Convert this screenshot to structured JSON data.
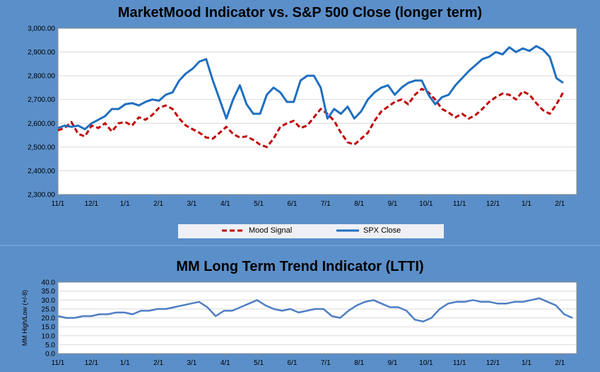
{
  "chart_data": [
    {
      "type": "line",
      "title": "MarketMood Indicator vs. S&P 500 Close (longer term)",
      "xlabel": "",
      "ylabel": "",
      "ylim": [
        2300,
        3000
      ],
      "y_ticks": [
        "3,000.00",
        "2,900.00",
        "2,800.00",
        "2,700.00",
        "2,600.00",
        "2,500.00",
        "2,400.00",
        "2,300.00"
      ],
      "x_ticks": [
        "11/1",
        "12/1",
        "1/1",
        "2/1",
        "3/1",
        "4/1",
        "5/1",
        "6/1",
        "7/1",
        "8/1",
        "9/1",
        "10/1",
        "11/1",
        "12/1",
        "1/1",
        "2/1"
      ],
      "legend_position": "bottom",
      "grid": true,
      "colors": {
        "mood": "#c00000",
        "spx": "#1f6fbf"
      },
      "series": [
        {
          "name": "Mood Signal",
          "style": "dashed",
          "color": "#c00000",
          "x": [
            0,
            2,
            4,
            6,
            8,
            10,
            12,
            14,
            16,
            18,
            20,
            22,
            24,
            26,
            28,
            30,
            32,
            34,
            36,
            38,
            40,
            42,
            44,
            46,
            48,
            50,
            52,
            54,
            56,
            58,
            60,
            62,
            64,
            66,
            68,
            70,
            72,
            74,
            76,
            78,
            80,
            82,
            84,
            86,
            88,
            90,
            92,
            94,
            96,
            98,
            100,
            102,
            104,
            106,
            108,
            110,
            112,
            114,
            116,
            118,
            120,
            122,
            124,
            126,
            128,
            130,
            132,
            134,
            136,
            138,
            140,
            142,
            144,
            146,
            148,
            150
          ],
          "values": [
            2570,
            2580,
            2605,
            2555,
            2545,
            2590,
            2580,
            2600,
            2565,
            2600,
            2605,
            2590,
            2625,
            2615,
            2635,
            2665,
            2675,
            2660,
            2620,
            2590,
            2575,
            2560,
            2540,
            2535,
            2560,
            2585,
            2555,
            2540,
            2545,
            2530,
            2510,
            2500,
            2535,
            2585,
            2600,
            2610,
            2580,
            2590,
            2625,
            2660,
            2640,
            2610,
            2560,
            2520,
            2510,
            2535,
            2560,
            2610,
            2650,
            2670,
            2690,
            2700,
            2680,
            2720,
            2745,
            2730,
            2700,
            2660,
            2645,
            2625,
            2640,
            2620,
            2635,
            2660,
            2690,
            2710,
            2725,
            2720,
            2700,
            2735,
            2720,
            2685,
            2655,
            2640,
            2680,
            2730
          ]
        },
        {
          "name": "SPX Close",
          "style": "solid",
          "color": "#1f6fbf",
          "x": [
            0,
            2,
            4,
            6,
            8,
            10,
            12,
            14,
            16,
            18,
            20,
            22,
            24,
            26,
            28,
            30,
            32,
            34,
            36,
            38,
            40,
            42,
            44,
            46,
            48,
            50,
            52,
            54,
            56,
            58,
            60,
            62,
            64,
            66,
            68,
            70,
            72,
            74,
            76,
            78,
            80,
            82,
            84,
            86,
            88,
            90,
            92,
            94,
            96,
            98,
            100,
            102,
            104,
            106,
            108,
            110,
            112,
            114,
            116,
            118,
            120,
            122,
            124,
            126,
            128,
            130,
            132,
            134,
            136,
            138,
            140,
            142,
            144,
            146,
            148,
            150
          ],
          "values": [
            2580,
            2590,
            2585,
            2590,
            2575,
            2600,
            2615,
            2630,
            2660,
            2660,
            2680,
            2685,
            2675,
            2690,
            2700,
            2695,
            2720,
            2730,
            2780,
            2810,
            2830,
            2860,
            2870,
            2780,
            2700,
            2620,
            2700,
            2760,
            2680,
            2640,
            2640,
            2720,
            2750,
            2730,
            2690,
            2690,
            2780,
            2800,
            2800,
            2750,
            2620,
            2660,
            2640,
            2670,
            2620,
            2650,
            2700,
            2730,
            2750,
            2760,
            2720,
            2750,
            2770,
            2780,
            2780,
            2720,
            2680,
            2710,
            2720,
            2760,
            2790,
            2820,
            2845,
            2870,
            2880,
            2900,
            2890,
            2920,
            2900,
            2915,
            2905,
            2925,
            2910,
            2880,
            2790,
            2770
          ]
        }
      ]
    },
    {
      "type": "line",
      "title": "MM Long Term Trend Indicator (LTTI)",
      "xlabel": "",
      "ylabel": "MM High/Low (+/-8)",
      "ylim": [
        0,
        40
      ],
      "y_ticks": [
        "40.0",
        "35.0",
        "30.0",
        "25.0",
        "20.0",
        "15.0",
        "10.0",
        "5.0",
        "0.0"
      ],
      "x_ticks": [
        "11/1",
        "12/1",
        "1/1",
        "2/1",
        "3/1",
        "4/1",
        "5/1",
        "6/1",
        "7/1",
        "8/1",
        "9/1",
        "10/1",
        "11/1",
        "12/1",
        "1/1",
        "2/1"
      ],
      "grid": true,
      "series": [
        {
          "color": "#4f7fc4",
          "x": [
            0,
            4,
            8,
            12,
            16,
            20,
            24,
            28,
            32,
            36,
            40,
            44,
            48,
            52,
            56,
            60,
            64,
            68,
            72,
            76,
            80,
            84,
            88,
            92,
            96,
            100,
            104,
            108,
            112,
            116,
            120,
            124,
            128,
            132,
            136,
            140,
            144,
            148,
            152,
            156,
            160,
            164,
            168,
            172,
            176,
            180,
            184,
            188,
            192,
            196,
            200,
            204,
            208,
            212,
            216,
            220,
            224,
            228,
            232,
            236,
            240,
            244,
            248
          ],
          "values": [
            21,
            20,
            20,
            21,
            21,
            22,
            22,
            23,
            23,
            22,
            24,
            24,
            25,
            25,
            26,
            27,
            28,
            29,
            26,
            21,
            24,
            24,
            26,
            28,
            30,
            27,
            25,
            24,
            25,
            23,
            24,
            25,
            25,
            21,
            20,
            24,
            27,
            29,
            30,
            28,
            26,
            26,
            24,
            19,
            18,
            20,
            25,
            28,
            29,
            29,
            30,
            29,
            29,
            28,
            28,
            29,
            29,
            30,
            31,
            29,
            27,
            22,
            20
          ]
        }
      ]
    }
  ]
}
